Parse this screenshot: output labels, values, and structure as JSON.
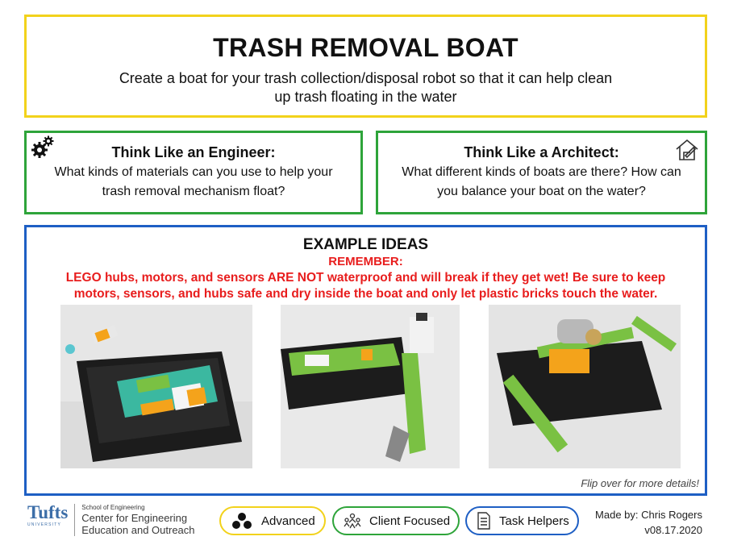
{
  "header": {
    "title": "TRASH REMOVAL BOAT",
    "subtitle_line1": "Create a boat for your trash collection/disposal robot so that it can help clean",
    "subtitle_line2": "up trash floating in the water"
  },
  "engineer": {
    "heading": "Think Like an Engineer:",
    "line1": "What kinds of materials can you use to help your",
    "line2": "trash removal mechanism float?",
    "icon": "gears-icon"
  },
  "architect": {
    "heading": "Think Like a Architect:",
    "line1": "What different kinds of boats are there? How can",
    "line2": "you balance your boat on the water?",
    "icon": "house-icon"
  },
  "examples": {
    "heading": "EXAMPLE IDEAS",
    "remember": "REMEMBER:",
    "warning_line1": "LEGO hubs, motors, and sensors ARE NOT waterproof and will break if they get wet! Be sure to keep",
    "warning_line2": "motors, sensors, and hubs safe and dry inside the boat and only let plastic bricks touch the water.",
    "flip_note": "Flip over for more details!"
  },
  "footer": {
    "logo_name": "Tufts",
    "logo_sub": "UNIVERSITY",
    "school": "School of Engineering",
    "center_line1": "Center for Engineering",
    "center_line2": "Education and Outreach",
    "badges": [
      {
        "label": "Advanced",
        "icon": "three-dots-icon",
        "color": "#f2d21b"
      },
      {
        "label": "Client Focused",
        "icon": "people-icon",
        "color": "#2ea43a"
      },
      {
        "label": "Task Helpers",
        "icon": "document-icon",
        "color": "#1e5fc4"
      }
    ],
    "made_by": "Made by: Chris Rogers",
    "version": "v08.17.2020"
  },
  "colors": {
    "title_border": "#f2d21b",
    "think_border": "#2ea43a",
    "example_border": "#1e5fc4",
    "warning_text": "#e81d1d"
  }
}
